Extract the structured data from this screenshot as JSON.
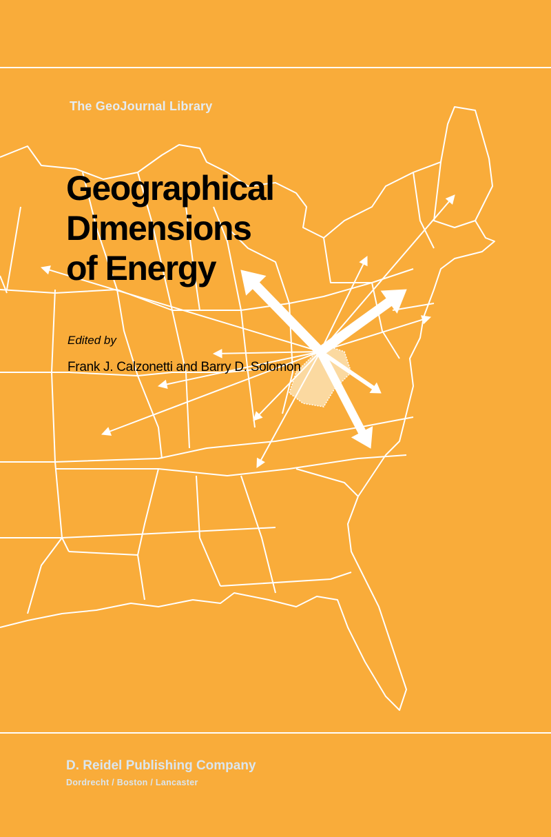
{
  "cover": {
    "series": "The GeoJournal Library",
    "title_lines": [
      "Geographical",
      "Dimensions",
      "of Energy"
    ],
    "edited_by": "Edited by",
    "authors": "Frank J. Calzonetti and Barry D. Solomon",
    "publisher": "D. Reidel Publishing Company",
    "places": "Dordrecht / Boston / Lancaster"
  },
  "colors": {
    "background": "#F9AC3A",
    "lines": "#FFFFFF",
    "title": "#000000",
    "publisher_text": "#DBE6EE"
  },
  "illustration": "map-of-eastern-united-states-with-energy-flow-arrows"
}
